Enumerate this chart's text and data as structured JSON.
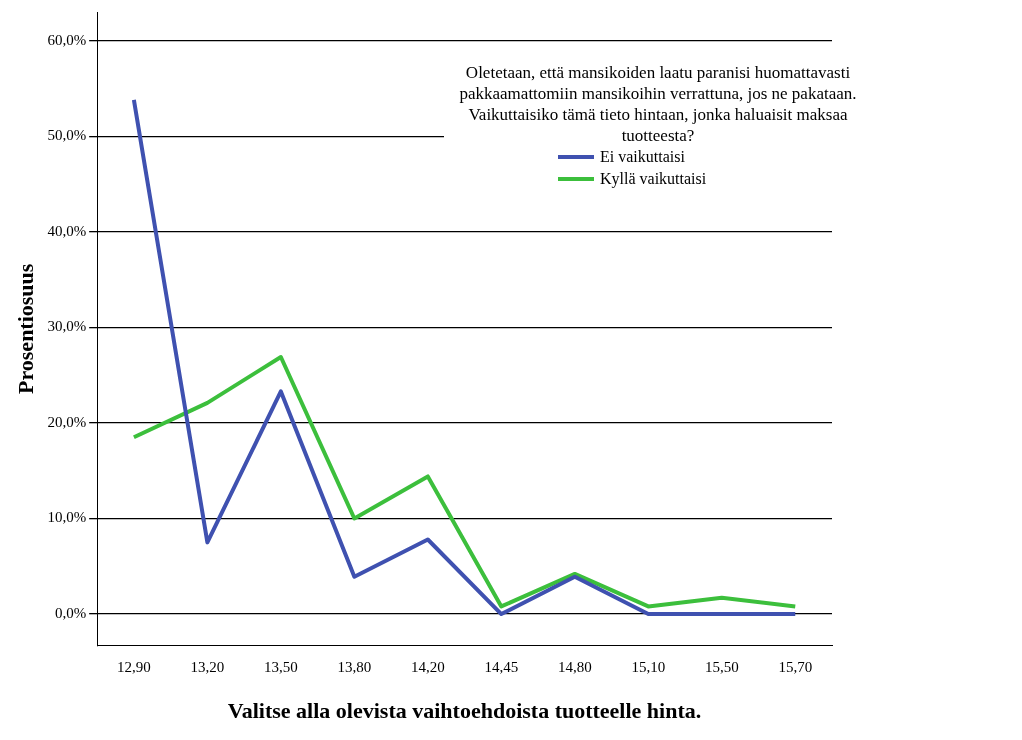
{
  "chart_data": {
    "type": "line",
    "xlabel": "Valitse alla olevista vaihtoehdoista tuotteelle hinta.",
    "ylabel": "Prosentiosuus",
    "legend_title": "Oletetaan, että mansikoiden laatu paranisi huomattavasti pakkaamattomiin mansikoihin verrattuna, jos ne pakataan. Vaikuttaisiko tämä tieto hintaan, jonka haluaisit maksaa tuotteesta?",
    "categories": [
      "12,90",
      "13,20",
      "13,50",
      "13,80",
      "14,20",
      "14,45",
      "14,80",
      "15,10",
      "15,50",
      "15,70"
    ],
    "series": [
      {
        "name": "Ei vaikuttaisi",
        "color": "#3f51b0",
        "values": [
          53.8,
          7.5,
          23.3,
          3.9,
          7.8,
          0,
          3.9,
          0,
          0,
          0
        ]
      },
      {
        "name": "Kyllä vaikuttaisi",
        "color": "#3cbf3c",
        "values": [
          18.5,
          22.1,
          26.9,
          10.0,
          14.4,
          0.8,
          4.2,
          0.8,
          1.7,
          0.8
        ]
      }
    ],
    "ylim": [
      -3.3,
      63
    ],
    "yticks": [
      {
        "value": 0,
        "label": "0,0%"
      },
      {
        "value": 10,
        "label": "10,0%"
      },
      {
        "value": 20,
        "label": "20,0%"
      },
      {
        "value": 30,
        "label": "30,0%"
      },
      {
        "value": 40,
        "label": "40,0%"
      },
      {
        "value": 50,
        "label": "50,0%"
      },
      {
        "value": 60,
        "label": "60,0%"
      }
    ],
    "grid": "y",
    "legend": "top right",
    "marker": "none",
    "line_style": "solid"
  }
}
